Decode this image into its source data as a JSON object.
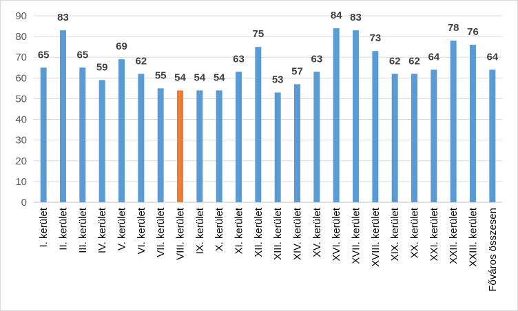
{
  "chart_data": {
    "type": "bar",
    "title": "",
    "xlabel": "",
    "ylabel": "",
    "ylim": [
      0,
      90
    ],
    "yticks": [
      0,
      10,
      20,
      30,
      40,
      50,
      60,
      70,
      80,
      90
    ],
    "grid": "horizontal",
    "legend": "none",
    "categories": [
      "I. kerület",
      "II. kerület",
      "III. kerület",
      "IV. kerület",
      "V. kerület",
      "VI. kerület",
      "VII. kerület",
      "VIII. kerület",
      "IX. kerület",
      "X. kerület",
      "XI. kerület",
      "XII. kerület",
      "XIII. kerület",
      "XIV. kerület",
      "XV. kerület",
      "XVI. kerület",
      "XVII. kerület",
      "XVIII. kerület",
      "XIX. kerület",
      "XX. kerület",
      "XXI. kerület",
      "XXII. kerület",
      "XXIII. kerület",
      "Főváros összesen"
    ],
    "values": [
      65,
      83,
      65,
      59,
      69,
      62,
      55,
      54,
      54,
      54,
      63,
      75,
      53,
      57,
      63,
      84,
      83,
      73,
      62,
      62,
      64,
      78,
      76,
      64
    ],
    "highlight_category": "VIII. kerület",
    "colors": {
      "bar": "#5B9BD5",
      "highlight": "#ED7D31",
      "grid": "#d9d9d9",
      "axis": "#bfbfbf"
    }
  }
}
